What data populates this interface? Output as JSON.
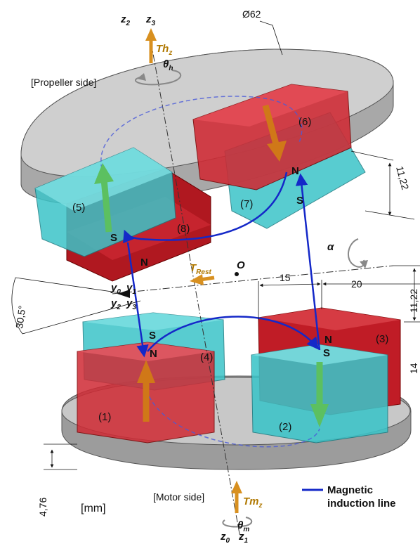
{
  "labels": {
    "diameter": "Ø62",
    "propeller_side": "[Propeller side]",
    "motor_side": "[Motor side]",
    "units": "[mm]",
    "legend": [
      "Magnetic",
      "induction line"
    ],
    "origin": "O",
    "alpha": "α"
  },
  "axes": {
    "z2": "z",
    "z2_sub": "2",
    "z3": "z",
    "z3_sub": "3",
    "z0": "z",
    "z0_sub": "0",
    "z1": "z",
    "z1_sub": "1",
    "y0": "y",
    "y0_sub": "0",
    "y1": "y",
    "y1_sub": "1",
    "y2": "y",
    "y2_sub": "2",
    "y3": "y",
    "y3_sub": "3",
    "theta_h": "θ",
    "theta_h_sub": "h",
    "theta_m": "θ",
    "theta_m_sub": "m"
  },
  "torques": {
    "thz": "Th",
    "thz_sub": "z",
    "tmz": "Tm",
    "tmz_sub": "z",
    "trest": "T",
    "trest_sub": "Rest"
  },
  "magnets": [
    "(1)",
    "(2)",
    "(3)",
    "(4)",
    "(5)",
    "(6)",
    "(7)",
    "(8)"
  ],
  "poles": {
    "N": "N",
    "S": "S"
  },
  "dimensions": {
    "d1": "11,22",
    "d2": "11,22",
    "d3": "15",
    "d4": "20",
    "d5": "14",
    "d6": "30,5°",
    "d7": "4,76"
  },
  "colors": {
    "red_magnet": "#d02a34",
    "cyan_magnet": "#3cc4c8",
    "disk": "#b4b4b4",
    "field_line": "#1428c8",
    "torque_arrow": "#d89020",
    "green_arrow": "#5cc060"
  }
}
